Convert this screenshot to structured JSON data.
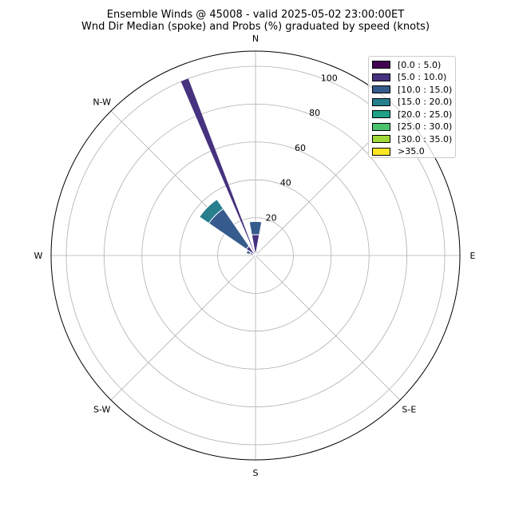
{
  "chart_data": {
    "type": "windrose",
    "title": "Ensemble Winds @ 45008 - valid 2025-05-02 23:00:00ET",
    "subtitle": "Wnd Dir Median (spoke) and Probs (%) graduated by speed (knots)",
    "directions": [
      "N",
      "N-W",
      "W",
      "S-W",
      "S",
      "S-E",
      "E"
    ],
    "r_ticks": [
      "20",
      "40",
      "60",
      "80",
      "100"
    ],
    "r_max": 108,
    "speed_bins": [
      {
        "label": "[0.0 : 5.0)",
        "color": "#440154"
      },
      {
        "label": "[5.0 : 10.0)",
        "color": "#46327e"
      },
      {
        "label": "[10.0 : 15.0)",
        "color": "#365c8d"
      },
      {
        "label": "[15.0 : 20.0)",
        "color": "#277f8e"
      },
      {
        "label": "[20.0 : 25.0)",
        "color": "#1fa187"
      },
      {
        "label": "[25.0 : 30.0)",
        "color": "#4ac16d"
      },
      {
        "label": "[30.0 : 35.0)",
        "color": "#a0da39"
      },
      {
        "label": ">35.0",
        "color": "#fde725"
      }
    ],
    "sectors": [
      {
        "dir_deg": 0,
        "stack": [
          1,
          10,
          7,
          0,
          0,
          0,
          0,
          0
        ]
      },
      {
        "dir_deg": 22.5,
        "stack": [
          1,
          1,
          0,
          0,
          0,
          0,
          0,
          0
        ]
      },
      {
        "dir_deg": 45,
        "stack": [
          1,
          0,
          0,
          0,
          0,
          0,
          0,
          0
        ]
      },
      {
        "dir_deg": 180,
        "stack": [
          1,
          0,
          0,
          0,
          0,
          0,
          0,
          0
        ]
      },
      {
        "dir_deg": 292.5,
        "stack": [
          1,
          2,
          2,
          0,
          0,
          0,
          0,
          0
        ]
      },
      {
        "dir_deg": 315,
        "stack": [
          1,
          5,
          24,
          6,
          0,
          0,
          0,
          0
        ]
      },
      {
        "dir_deg": 337.5,
        "stack": [
          1,
          1,
          0,
          0,
          0,
          0,
          0,
          0
        ]
      }
    ],
    "spoke": {
      "dir_deg": 338,
      "value": 100
    },
    "legend_position": "top-right",
    "grid": true
  }
}
